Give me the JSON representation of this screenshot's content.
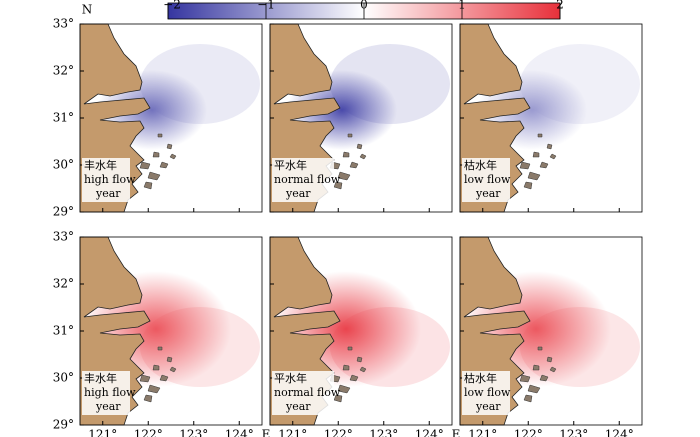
{
  "colorbar": {
    "lim": [
      -2,
      2
    ],
    "ticks": [
      {
        "value": -2,
        "label": "−2"
      },
      {
        "value": -1,
        "label": "−1"
      },
      0,
      1,
      2
    ]
  },
  "lat_lim": [
    29,
    33
  ],
  "lon_lim": [
    120.5,
    124.5
  ],
  "lat_ticks": [
    {
      "value": 33,
      "label": "33°"
    },
    {
      "value": 32,
      "label": "32°"
    },
    {
      "value": 31,
      "label": "31°"
    },
    {
      "value": 30,
      "label": "30°"
    },
    {
      "value": 29,
      "label": "29°"
    }
  ],
  "lon_ticks": [
    {
      "value": 121,
      "label": "121°"
    },
    {
      "value": 122,
      "label": "122°"
    },
    {
      "value": 123,
      "label": "123°"
    },
    {
      "value": 124,
      "label": "124°"
    }
  ],
  "n_label": "N",
  "e_label": "E",
  "panels": [
    {
      "label": [
        "丰水年",
        "high flow",
        "year"
      ],
      "peak": -1.4
    },
    {
      "label": [
        "平水年",
        "normal flow",
        "year"
      ],
      "peak": -1.8
    },
    {
      "label": [
        "枯水年",
        "low flow",
        "year"
      ],
      "peak": -1.0
    },
    {
      "label": [
        "丰水年",
        "high flow",
        "year"
      ],
      "peak": 1.6
    },
    {
      "label": [
        "平水年",
        "normal flow",
        "year"
      ],
      "peak": 1.8
    },
    {
      "label": [
        "枯水年",
        "low flow",
        "year"
      ],
      "peak": 1.6
    }
  ]
}
